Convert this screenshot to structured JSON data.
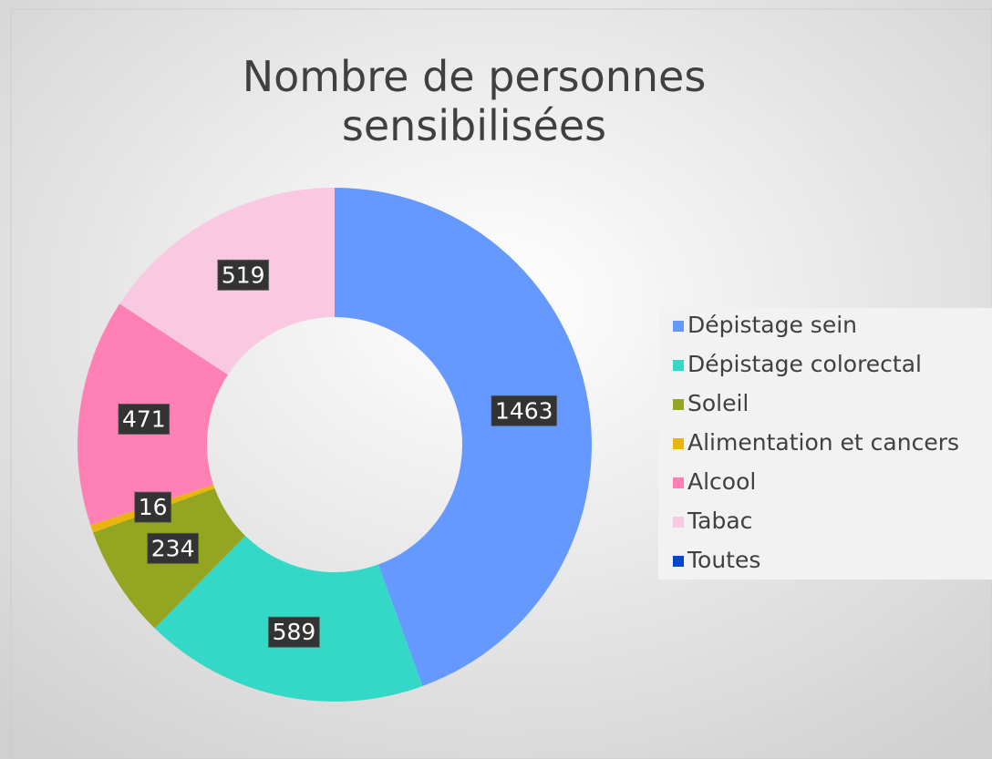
{
  "chart_data": {
    "type": "donut",
    "title": "Nombre de personnes sensibilisées",
    "categories": [
      "Dépistage sein",
      "Dépistage colorectal",
      "Soleil",
      "Alimentation et cancers",
      "Alcool",
      "Tabac",
      "Toutes"
    ],
    "values": [
      1463,
      589,
      234,
      16,
      471,
      519,
      0
    ],
    "colors": [
      "#6699ff",
      "#33d9c6",
      "#93a521",
      "#e8b40e",
      "#ff80b4",
      "#f9c8e1",
      "#0044cc"
    ],
    "legend": "right"
  }
}
